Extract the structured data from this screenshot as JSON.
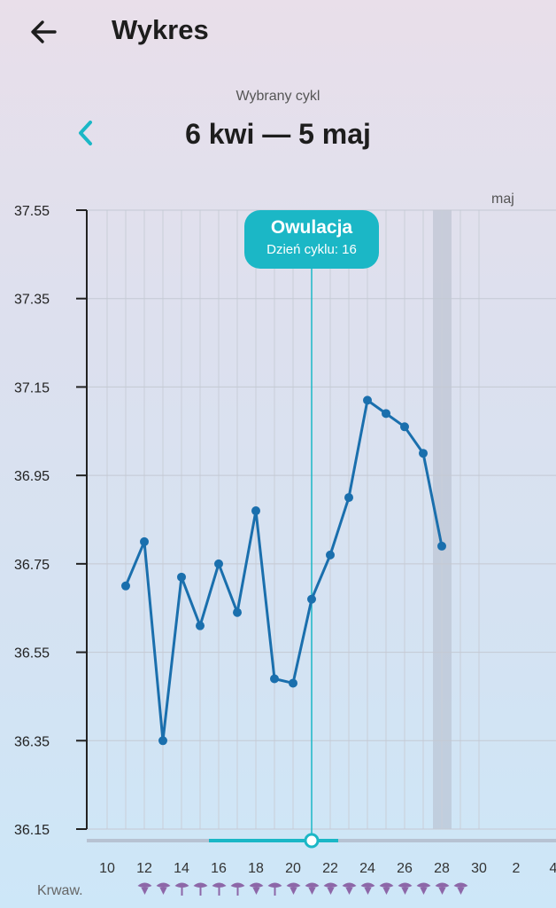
{
  "header": {
    "title": "Wykres",
    "back_icon": "arrow-left-icon"
  },
  "cycle": {
    "caption": "Wybrany cykl",
    "range": "6 kwi — 5 maj",
    "prev_icon": "chevron-left-icon"
  },
  "ovulation": {
    "title": "Owulacja",
    "subtitle": "Dzień cyklu: 16",
    "day": 21
  },
  "month_label": "maj",
  "bleeding": {
    "label": "Krwaw.",
    "days": [
      12,
      13,
      14,
      15,
      16,
      17,
      18,
      19,
      20,
      21,
      22,
      23,
      24,
      25,
      26,
      27,
      28,
      29
    ],
    "heavy": [
      true,
      true,
      false,
      false,
      false,
      false,
      true,
      false,
      true,
      true,
      true,
      true,
      true,
      true,
      true,
      true,
      true,
      true
    ]
  },
  "colors": {
    "line": "#1a6fad",
    "accent": "#1bb7c6",
    "highlight_column": "#b4bccb",
    "drop": "#8d67a8"
  },
  "chart_data": {
    "type": "line",
    "title": "",
    "xlabel": "",
    "ylabel": "",
    "ylim": [
      36.15,
      37.55
    ],
    "yticks": [
      "37.55",
      "37.35",
      "37.15",
      "36.95",
      "36.75",
      "36.55",
      "36.35",
      "36.15"
    ],
    "xticks": [
      "10",
      "12",
      "14",
      "16",
      "18",
      "20",
      "22",
      "24",
      "26",
      "28",
      "30",
      "2",
      "4"
    ],
    "highlight_day": 28,
    "series": [
      {
        "x": [
          11,
          12,
          13,
          14,
          15,
          16,
          17,
          18,
          19,
          20,
          21,
          22,
          23,
          24,
          25,
          26,
          27,
          28
        ],
        "y": [
          36.7,
          36.8,
          36.35,
          36.72,
          36.61,
          36.75,
          36.64,
          36.87,
          36.49,
          36.48,
          36.67,
          36.77,
          36.9,
          37.12,
          37.09,
          37.06,
          37.0,
          36.79
        ]
      }
    ]
  }
}
